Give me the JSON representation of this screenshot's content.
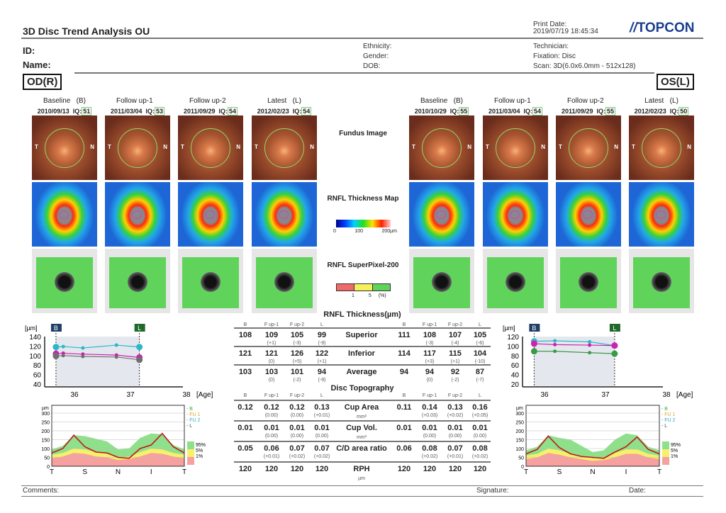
{
  "header": {
    "title": "3D Disc Trend Analysis OU",
    "print_date_label": "Print Date:",
    "print_date": "2019/07/19 18:45:34",
    "logo": "TOPCON",
    "id_label": "ID:",
    "name_label": "Name:",
    "ethnicity": "Ethnicity:",
    "gender": "Gender:",
    "dob": "DOB:",
    "technician": "Technician:",
    "fixation": "Fixation: Disc",
    "scan": "Scan: 3D(6.0x6.0mm - 512x128)"
  },
  "od": {
    "label": "OD(R)",
    "exams": [
      {
        "name": "Baseline",
        "tag": "(B)",
        "date": "2010/09/13",
        "iq": "IQ:",
        "iqv": "51"
      },
      {
        "name": "Follow up-1",
        "tag": "",
        "date": "2011/03/04",
        "iq": "IQ:",
        "iqv": "53"
      },
      {
        "name": "Follow up-2",
        "tag": "",
        "date": "2011/09/29",
        "iq": "IQ:",
        "iqv": "54"
      },
      {
        "name": "Latest",
        "tag": "(L)",
        "date": "2012/02/23",
        "iq": "IQ:",
        "iqv": "54"
      }
    ]
  },
  "os": {
    "label": "OS(L)",
    "exams": [
      {
        "name": "Baseline",
        "tag": "(B)",
        "date": "2010/10/29",
        "iq": "IQ:",
        "iqv": "55"
      },
      {
        "name": "Follow up-1",
        "tag": "",
        "date": "2011/03/04",
        "iq": "IQ:",
        "iqv": "54"
      },
      {
        "name": "Follow up-2",
        "tag": "",
        "date": "2011/09/29",
        "iq": "IQ:",
        "iqv": "55"
      },
      {
        "name": "Latest",
        "tag": "(L)",
        "date": "2012/02/23",
        "iq": "IQ:",
        "iqv": "50"
      }
    ]
  },
  "image_labels": {
    "t": "T",
    "n": "N"
  },
  "middle": {
    "fundus": "Fundus Image",
    "rnfl_map": "RNFL Thickness Map",
    "map_ticks": [
      "0",
      "100",
      "200µm"
    ],
    "superpixel": "RNFL SuperPixel-200",
    "sp_ticks": [
      "1",
      "5",
      "(%)"
    ]
  },
  "table": {
    "rnfl_title": "RNFL Thickness(µm)",
    "disc_title": "Disc Topography",
    "col_heads": [
      "B",
      "F up-1",
      "F up-2",
      "L"
    ],
    "rnfl_rows": [
      {
        "label": "Superior",
        "unit": "",
        "od": [
          "108",
          "109",
          "105",
          "99"
        ],
        "od_d": [
          "",
          "(+1)",
          "(-3)",
          "(-9)"
        ],
        "os": [
          "111",
          "108",
          "107",
          "105"
        ],
        "os_d": [
          "",
          "(-3)",
          "(-4)",
          "(-6)"
        ]
      },
      {
        "label": "Inferior",
        "unit": "",
        "od": [
          "121",
          "121",
          "126",
          "122"
        ],
        "od_d": [
          "",
          "(0)",
          "(+5)",
          "(+1)"
        ],
        "os": [
          "114",
          "117",
          "115",
          "104"
        ],
        "os_d": [
          "",
          "(+3)",
          "(+1)",
          "(-10)"
        ]
      },
      {
        "label": "Average",
        "unit": "",
        "od": [
          "103",
          "103",
          "101",
          "94"
        ],
        "od_d": [
          "",
          "(0)",
          "(-2)",
          "(-9)"
        ],
        "os": [
          "94",
          "94",
          "92",
          "87"
        ],
        "os_d": [
          "",
          "(0)",
          "(-2)",
          "(-7)"
        ]
      }
    ],
    "disc_rows": [
      {
        "label": "Cup Area",
        "unit": "mm²",
        "od": [
          "0.12",
          "0.12",
          "0.12",
          "0.13"
        ],
        "od_d": [
          "",
          "(0.00)",
          "(0.00)",
          "(+0.01)"
        ],
        "os": [
          "0.11",
          "0.14",
          "0.13",
          "0.16"
        ],
        "os_d": [
          "",
          "(+0.03)",
          "(+0.02)",
          "(+0.05)"
        ]
      },
      {
        "label": "Cup Vol.",
        "unit": "mm³",
        "od": [
          "0.01",
          "0.01",
          "0.01",
          "0.01"
        ],
        "od_d": [
          "",
          "(0.00)",
          "(0.00)",
          "(0.00)"
        ],
        "os": [
          "0.01",
          "0.01",
          "0.01",
          "0.01"
        ],
        "os_d": [
          "",
          "(0.00)",
          "(0.00)",
          "(0.00)"
        ]
      },
      {
        "label": "C/D area ratio",
        "unit": "",
        "od": [
          "0.05",
          "0.06",
          "0.07",
          "0.07"
        ],
        "od_d": [
          "",
          "(+0.01)",
          "(+0.02)",
          "(+0.02)"
        ],
        "os": [
          "0.06",
          "0.08",
          "0.07",
          "0.08"
        ],
        "os_d": [
          "",
          "(+0.02)",
          "(+0.01)",
          "(+0.02)"
        ]
      },
      {
        "label": "RPH",
        "unit": "µm",
        "od": [
          "120",
          "120",
          "120",
          "120"
        ],
        "od_d": [
          "",
          "",
          "",
          ""
        ],
        "os": [
          "120",
          "120",
          "120",
          "120"
        ],
        "os_d": [
          "",
          "",
          "",
          ""
        ]
      }
    ]
  },
  "chart_data": [
    {
      "type": "line",
      "eye": "OD",
      "ylabel": "[µm]",
      "xlabel": "[Age]",
      "ylim": [
        40,
        140
      ],
      "yticks": [
        40,
        60,
        80,
        100,
        120,
        140
      ],
      "xticks": [
        36,
        37,
        38
      ],
      "badges": [
        "B",
        "L"
      ],
      "x": [
        35.67,
        35.8,
        36.15,
        36.75,
        37.16
      ],
      "series": [
        {
          "color": "#2ab8c8",
          "values": [
            118,
            119,
            116,
            122,
            118
          ]
        },
        {
          "color": "#d020b0",
          "values": [
            104,
            105,
            103,
            101,
            96
          ]
        },
        {
          "color": "#707070",
          "values": [
            99,
            100,
            98,
            97,
            91
          ]
        }
      ]
    },
    {
      "type": "line",
      "eye": "OS",
      "ylabel": "[µm]",
      "xlabel": "[Age]",
      "ylim": [
        20,
        120
      ],
      "yticks": [
        20,
        40,
        60,
        80,
        100,
        120
      ],
      "xticks": [
        36,
        37,
        38
      ],
      "badges": [
        "B",
        "L"
      ],
      "x": [
        35.83,
        36.17,
        36.74,
        37.15
      ],
      "series": [
        {
          "color": "#2ab8c8",
          "values": [
            110,
            111,
            109,
            101
          ]
        },
        {
          "color": "#d020b0",
          "values": [
            105,
            103,
            102,
            101
          ]
        },
        {
          "color": "#3a9a48",
          "values": [
            89,
            89,
            86,
            84
          ]
        }
      ]
    },
    {
      "type": "area",
      "eye": "OD",
      "ylabel": "µm",
      "ylim": [
        0,
        300
      ],
      "yticks": [
        0,
        50,
        100,
        150,
        200,
        250,
        300
      ],
      "xticks": [
        "T",
        "S",
        "N",
        "I",
        "T"
      ],
      "legend": [
        "B",
        "FU 1",
        "FU 2",
        "L"
      ],
      "norm_legend": [
        "95%",
        "5%",
        "1%"
      ],
      "p95": [
        95,
        115,
        175,
        170,
        155,
        140,
        95,
        100,
        160,
        185,
        180,
        120,
        95
      ],
      "p5": [
        65,
        75,
        100,
        95,
        80,
        70,
        50,
        55,
        80,
        100,
        95,
        75,
        65
      ],
      "p1": [
        45,
        55,
        75,
        70,
        55,
        50,
        35,
        40,
        55,
        75,
        70,
        55,
        45
      ],
      "latest": [
        75,
        100,
        175,
        110,
        80,
        75,
        50,
        45,
        100,
        120,
        185,
        110,
        75
      ]
    },
    {
      "type": "area",
      "eye": "OS",
      "ylabel": "µm",
      "ylim": [
        0,
        300
      ],
      "yticks": [
        0,
        50,
        100,
        150,
        200,
        250,
        300
      ],
      "xticks": [
        "T",
        "S",
        "N",
        "I",
        "T"
      ],
      "legend": [
        "B",
        "FU 1",
        "FU 2",
        "L"
      ],
      "norm_legend": [
        "95%",
        "5%",
        "1%"
      ],
      "p95": [
        90,
        110,
        175,
        160,
        150,
        115,
        80,
        90,
        150,
        185,
        175,
        110,
        90
      ],
      "p5": [
        60,
        70,
        100,
        90,
        70,
        55,
        45,
        50,
        75,
        95,
        95,
        70,
        60
      ],
      "p1": [
        40,
        50,
        75,
        65,
        50,
        40,
        30,
        35,
        50,
        70,
        70,
        50,
        40
      ],
      "latest": [
        70,
        95,
        170,
        105,
        70,
        55,
        50,
        45,
        80,
        110,
        165,
        95,
        70
      ]
    }
  ],
  "footer": {
    "comments": "Comments:",
    "signature": "Signature:",
    "date": "Date:"
  },
  "colors": {
    "baseline_badge": "#1f3f66",
    "latest_badge": "#1f6a2a"
  }
}
